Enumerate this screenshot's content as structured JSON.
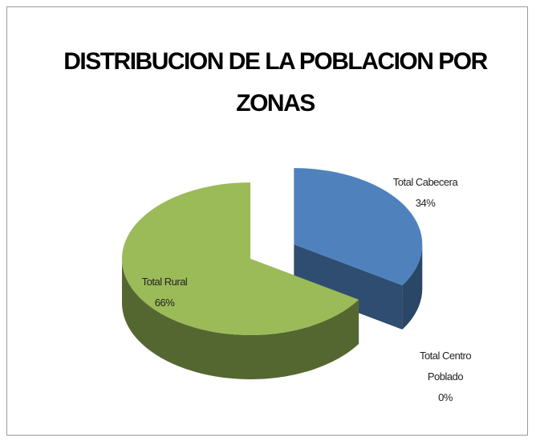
{
  "chart_data": {
    "type": "pie3d",
    "title": "DISTRIBUCION DE LA POBLACION POR ZONAS",
    "categories": [
      "Total Cabecera",
      "Total Centro Poblado",
      "Total Rural"
    ],
    "values": [
      34,
      0,
      66
    ],
    "value_labels": [
      "34%",
      "0%",
      "66%"
    ],
    "colors": [
      "#4f81bd",
      "#8c2b2b",
      "#9bbb59"
    ],
    "exploded": [
      true,
      true,
      false
    ]
  }
}
